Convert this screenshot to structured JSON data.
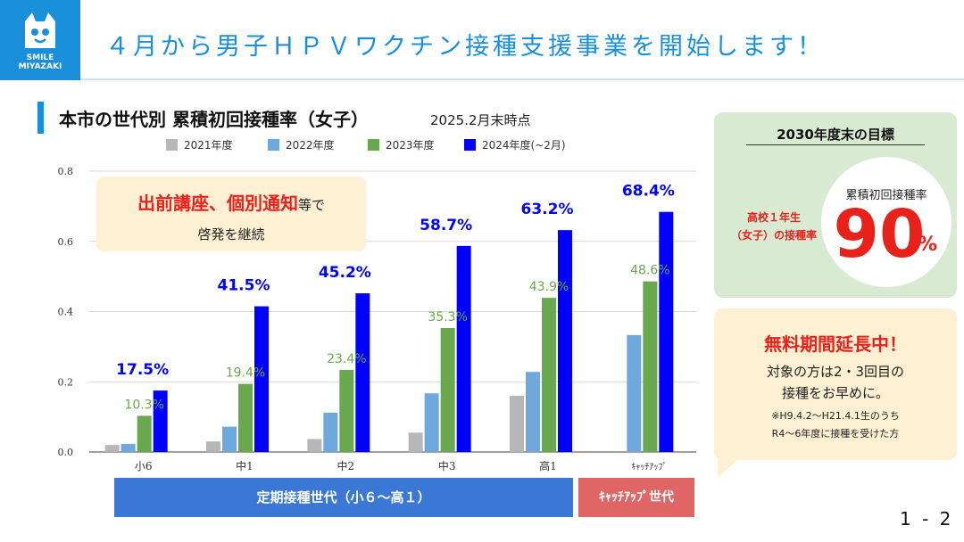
{
  "logo": {
    "line1": "SMILE",
    "line2": "MIYAZAKI"
  },
  "header": {
    "title": "４月から男子ＨＰＶワクチン接種支援事業を開始します！"
  },
  "chart_title": "本市の世代別 累積初回接種率（女子）",
  "chart_subtitle": "2025.2月末時点",
  "callout_left": {
    "emphasis": "出前講座、個別通知",
    "rest": "等で",
    "line2": "啓発を継続"
  },
  "bands": {
    "regular": "定期接種世代（小６～高１）",
    "catchup": "ｷｬｯﾁｱｯﾌﾟ世代"
  },
  "goal": {
    "title": "2030年度末の目標",
    "target_line1": "高校１年生",
    "target_line2": "（女子）の接種率",
    "circle_label": "累積初回接種率",
    "value": "90",
    "unit": "%"
  },
  "extension": {
    "title": "無料期間延長中！",
    "line1": "対象の方は2・3回目の",
    "line2": "接種をお早めに。",
    "line3": "※H9.4.2～H21.4.1生のうち",
    "line4": "R4～6年度に接種を受けた方"
  },
  "page_number": "1 - 2",
  "colors": {
    "accent_blue": "#1a8fd9",
    "series_2021": "#b7b7b7",
    "series_2022": "#6fa8dc",
    "series_2023": "#6aa84f",
    "series_2024": "#0000ff",
    "emphasis_red": "#e8221b",
    "band_regular": "#3b78d6",
    "band_catchup": "#e06666"
  },
  "chart_data": {
    "type": "bar",
    "categories": [
      "小6",
      "中1",
      "中2",
      "中3",
      "高1",
      "ｷｬｯﾁｱｯﾌﾟ"
    ],
    "series": [
      {
        "name": "2021年度",
        "values": [
          0.02,
          0.03,
          0.037,
          0.055,
          0.16,
          null
        ]
      },
      {
        "name": "2022年度",
        "values": [
          0.023,
          0.072,
          0.112,
          0.167,
          0.228,
          0.333
        ]
      },
      {
        "name": "2023年度",
        "values": [
          0.103,
          0.194,
          0.234,
          0.353,
          0.439,
          0.486
        ]
      },
      {
        "name": "2024年度(~2月)",
        "values": [
          0.175,
          0.415,
          0.452,
          0.587,
          0.632,
          0.684
        ]
      }
    ],
    "data_labels_2023": [
      "10.3%",
      "19.4%",
      "23.4%",
      "35.3%",
      "43.9%",
      "48.6%"
    ],
    "data_labels_2024": [
      "17.5%",
      "41.5%",
      "45.2%",
      "58.7%",
      "63.2%",
      "68.4%"
    ],
    "yticks": [
      "0.0",
      "0.2",
      "0.4",
      "0.6",
      "0.8"
    ],
    "ylim": [
      0,
      0.8
    ],
    "legend_position": "top"
  }
}
